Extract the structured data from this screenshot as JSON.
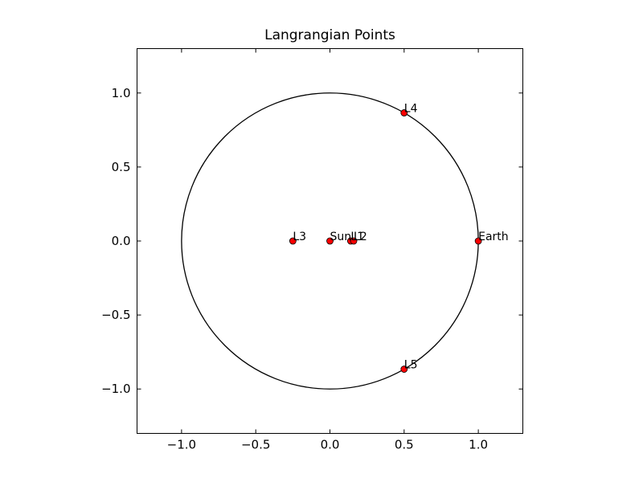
{
  "chart_data": {
    "type": "scatter",
    "title": "Langrangian Points",
    "xlabel": "",
    "ylabel": "",
    "xlim": [
      -1.3,
      1.3
    ],
    "ylim": [
      -1.3,
      1.3
    ],
    "xticks": [
      -1.0,
      -0.5,
      0.0,
      0.5,
      1.0
    ],
    "yticks": [
      -1.0,
      -0.5,
      0.0,
      0.5,
      1.0
    ],
    "xtick_labels": [
      "−1.0",
      "−0.5",
      "0.0",
      "0.5",
      "1.0"
    ],
    "ytick_labels": [
      "−1.0",
      "−0.5",
      "0.0",
      "0.5",
      "1.0"
    ],
    "grid": false,
    "orbit_radius": 1.0,
    "points": [
      {
        "label": "Sun",
        "x": 0.0,
        "y": 0.0
      },
      {
        "label": "Earth",
        "x": 1.0,
        "y": 0.0
      },
      {
        "label": "L1",
        "x": 0.14,
        "y": 0.0
      },
      {
        "label": "L2",
        "x": 0.16,
        "y": 0.0
      },
      {
        "label": "L3",
        "x": -0.25,
        "y": 0.0
      },
      {
        "label": "L4",
        "x": 0.5,
        "y": 0.866
      },
      {
        "label": "L5",
        "x": 0.5,
        "y": -0.866
      }
    ],
    "colors": {
      "marker_fill": "#ff0000",
      "marker_edge": "#000000",
      "orbit": "#000000"
    }
  }
}
